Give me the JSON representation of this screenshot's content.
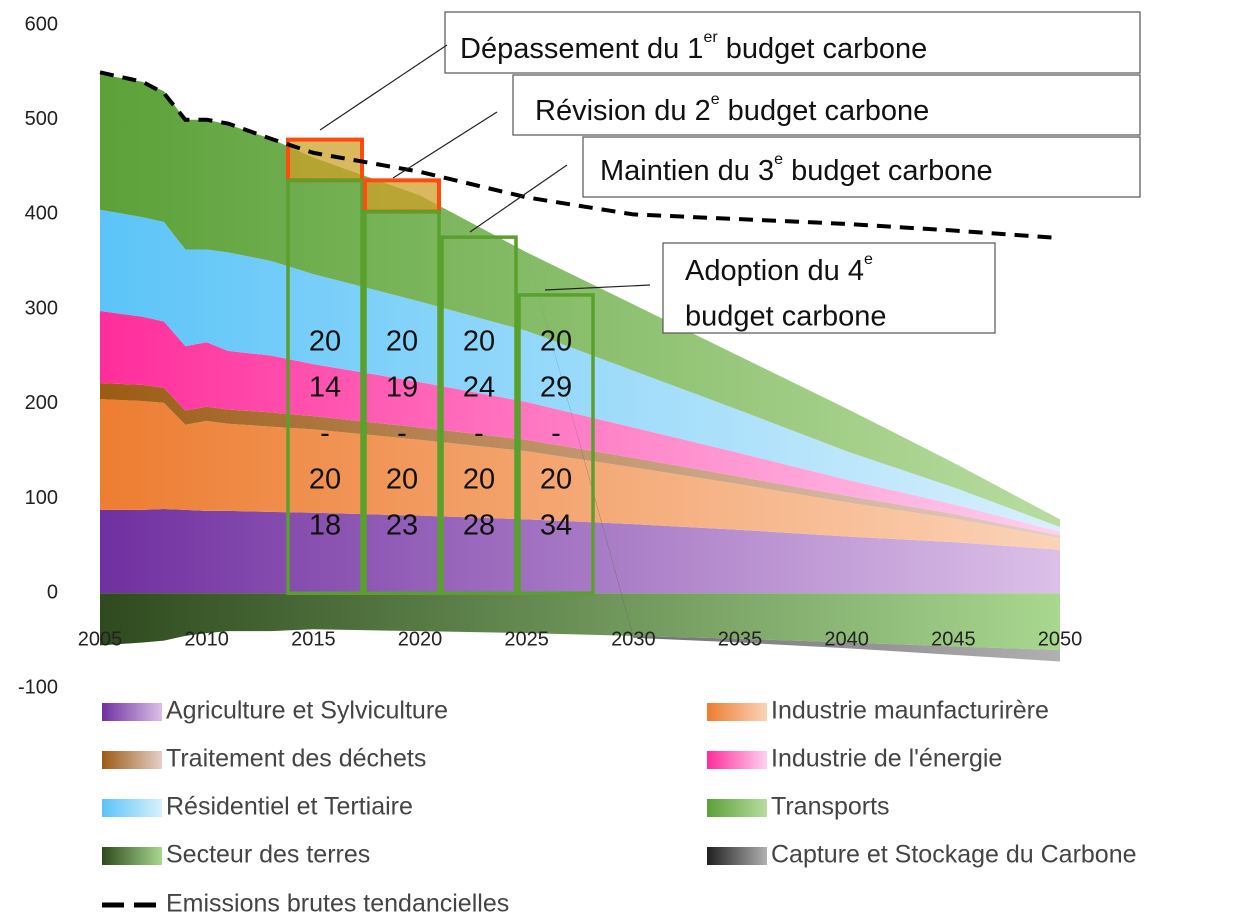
{
  "chart_data": {
    "type": "stacked-area",
    "x": [
      2005,
      2007,
      2008,
      2009,
      2010,
      2011,
      2013,
      2015,
      2020,
      2025,
      2030,
      2035,
      2040,
      2045,
      2050
    ],
    "xlim": [
      2005,
      2050
    ],
    "xticks": [
      2005,
      2010,
      2015,
      2020,
      2025,
      2030,
      2035,
      2040,
      2045,
      2050
    ],
    "ylim": [
      -100,
      600
    ],
    "yticks": [
      -100,
      0,
      100,
      200,
      300,
      400,
      500,
      600
    ],
    "series": [
      {
        "name": "Agriculture et Sylviculture",
        "color": "#7030a0",
        "light": "#dcc0e8",
        "values": [
          88,
          88,
          89,
          88,
          87,
          87,
          86,
          85,
          82,
          78,
          73,
          67,
          60,
          54,
          46
        ]
      },
      {
        "name": "Industrie maunfacturirère",
        "color": "#ed7d31",
        "light": "#fbd3b8",
        "values": [
          117,
          115,
          112,
          90,
          95,
          92,
          90,
          88,
          80,
          72,
          60,
          48,
          36,
          25,
          12
        ]
      },
      {
        "name": "Traitement des déchets",
        "color": "#9c5b14",
        "light": "#e6cfc8",
        "values": [
          17,
          17,
          16,
          15,
          15,
          15,
          15,
          14,
          13,
          12,
          10,
          8,
          7,
          5,
          3
        ]
      },
      {
        "name": "Industrie de l'énergie",
        "color": "#ff2d9b",
        "light": "#ffd0f0",
        "values": [
          76,
          72,
          70,
          68,
          68,
          62,
          60,
          55,
          48,
          40,
          32,
          25,
          17,
          10,
          4
        ]
      },
      {
        "name": "Résidentiel et Tertiaire",
        "color": "#5bc4f8",
        "light": "#d8f0fc",
        "values": [
          107,
          105,
          105,
          102,
          98,
          104,
          100,
          95,
          85,
          75,
          60,
          45,
          30,
          18,
          5
        ]
      },
      {
        "name": "Transports",
        "color": "#5ba138",
        "light": "#b8dca0",
        "values": [
          143,
          143,
          138,
          137,
          137,
          135,
          129,
          123,
          112,
          83,
          70,
          57,
          45,
          26,
          8
        ]
      },
      {
        "name": "Secteur des terres",
        "color": "#2e4a1e",
        "light": "#a8d890",
        "values": [
          -55,
          -52,
          -50,
          -45,
          -42,
          -40,
          -40,
          -38,
          -40,
          -42,
          -45,
          -48,
          -52,
          -56,
          -60
        ]
      },
      {
        "name": "Capture et Stockage du Carbone",
        "color": "#202020",
        "light": "#b0b0b0",
        "values": [
          0,
          0,
          0,
          0,
          0,
          0,
          0,
          0,
          0,
          0,
          -2,
          -4,
          -6,
          -9,
          -12
        ]
      }
    ],
    "line": {
      "name": "Emissions brutes tendancielles",
      "color": "#000000",
      "values": [
        550,
        540,
        528,
        500,
        500,
        496,
        480,
        465,
        445,
        418,
        400,
        395,
        390,
        383,
        375
      ]
    },
    "budgets": {
      "values": [
        436,
        403,
        376,
        315
      ],
      "overshoot": [
        479,
        436,
        null,
        null
      ],
      "labels": [
        [
          "20",
          "14",
          "-",
          "20",
          "18"
        ],
        [
          "20",
          "19",
          "-",
          "20",
          "23"
        ],
        [
          "20",
          "24",
          "-",
          "20",
          "28"
        ],
        [
          "20",
          "29",
          "-",
          "20",
          "34"
        ]
      ]
    },
    "annotations": [
      {
        "text": "Dépassement du 1",
        "sup": "er",
        "after": " budget carbone"
      },
      {
        "text": "Révision du 2",
        "sup": "e",
        "after": " budget carbone"
      },
      {
        "text": "Maintien du 3",
        "sup": "e",
        "after": " budget carbone"
      },
      {
        "text": "Adoption du 4",
        "sup": "e",
        "line2": "budget carbone"
      }
    ]
  }
}
